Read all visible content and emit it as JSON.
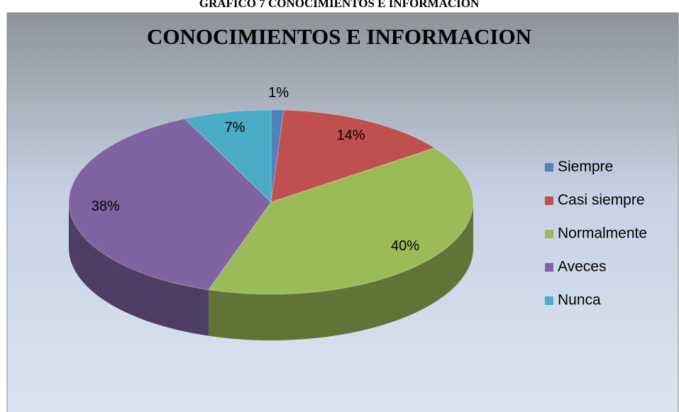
{
  "caption": "GRAFICO 7 CONOCIMIENTOS E INFORMACION",
  "chart_data": {
    "type": "pie",
    "title": "CONOCIMIENTOS E INFORMACION",
    "categories": [
      "Siempre",
      "Casi siempre",
      "Normalmente",
      "Aveces",
      "Nunca"
    ],
    "values": [
      1,
      14,
      40,
      38,
      7
    ],
    "value_labels": [
      "1%",
      "14%",
      "40%",
      "38%",
      "7%"
    ],
    "colors": [
      "#4f81bd",
      "#c0504d",
      "#9bbb59",
      "#8064a2",
      "#4bacc6"
    ],
    "legend": "right"
  }
}
